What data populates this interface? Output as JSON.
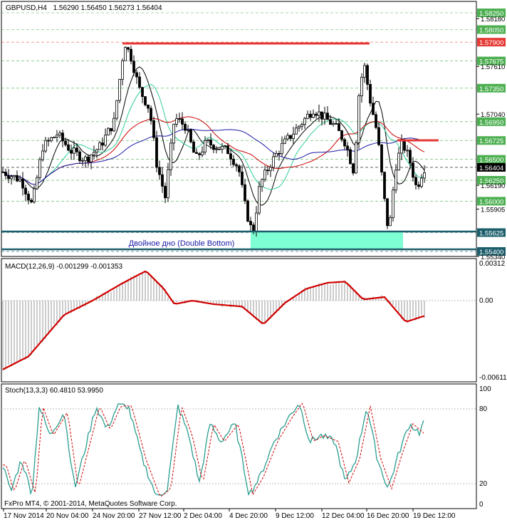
{
  "header": {
    "symbol": "GBPUSD,H4",
    "ohlc": "1.56290 1.56450 1.56273 1.56404"
  },
  "price_panel": {
    "price_labels": [
      {
        "label": "1.58250",
        "boxed": true,
        "color": "#4caf50"
      },
      {
        "label": "1.58180",
        "boxed": false
      },
      {
        "label": "1.58050",
        "boxed": true,
        "color": "#4caf50"
      },
      {
        "label": "1.57900",
        "boxed": true,
        "color": "#e53935"
      },
      {
        "label": "1.57675",
        "boxed": true,
        "color": "#4caf50"
      },
      {
        "label": "1.57610",
        "boxed": false
      },
      {
        "label": "1.57350",
        "boxed": true,
        "color": "#4caf50"
      },
      {
        "label": "1.57040",
        "boxed": false
      },
      {
        "label": "1.56950",
        "boxed": true,
        "color": "#4caf50"
      },
      {
        "label": "1.56725",
        "boxed": true,
        "color": "#4caf50"
      },
      {
        "label": "1.56500",
        "boxed": true,
        "color": "#4caf50"
      },
      {
        "label": "1.56404",
        "boxed": true,
        "color": "#000000"
      },
      {
        "label": "1.56250",
        "boxed": true,
        "color": "#4caf50"
      },
      {
        "label": "1.56190",
        "boxed": false
      },
      {
        "label": "1.56000",
        "boxed": true,
        "color": "#4caf50"
      },
      {
        "label": "1.55905",
        "boxed": false
      },
      {
        "label": "1.55625",
        "boxed": true,
        "color": "#1b5e6b"
      },
      {
        "label": "1.55400",
        "boxed": true,
        "color": "#1b5e6b"
      },
      {
        "label": "1.55340",
        "boxed": false
      }
    ],
    "pattern_label": "Двойное дно (Double Bottom)",
    "colors": {
      "resistance": "#e53935",
      "support": "#1b5e6b",
      "pattern_fill": "#7fffd4",
      "ma_red": "#cc0000",
      "ma_blue": "#1a1aa6",
      "ma_green": "#2ecc9a"
    }
  },
  "macd_panel": {
    "title": "MACD(12,26,9) -0.001299 -0.001353",
    "scale": [
      "0.00312",
      "0.00",
      "-0.00611"
    ]
  },
  "stoch_panel": {
    "title": "Stoch(13,3,3) 60.4810 53.9950",
    "scale": [
      "100",
      "80",
      "20",
      "0"
    ]
  },
  "footer": {
    "copyright": "FxPro MT4, © 2001-2014, MetaQuotes Software Corp.",
    "dates": [
      "17 Nov 2014",
      "20 Nov 04:00",
      "24 Nov 20:00",
      "27 Nov 12:00",
      "2 Dec 04:00",
      "4 Dec 20:00",
      "9 Dec 12:00",
      "12 Dec 04:00",
      "16 Dec 20:00",
      "19 Dec 12:00"
    ]
  }
}
